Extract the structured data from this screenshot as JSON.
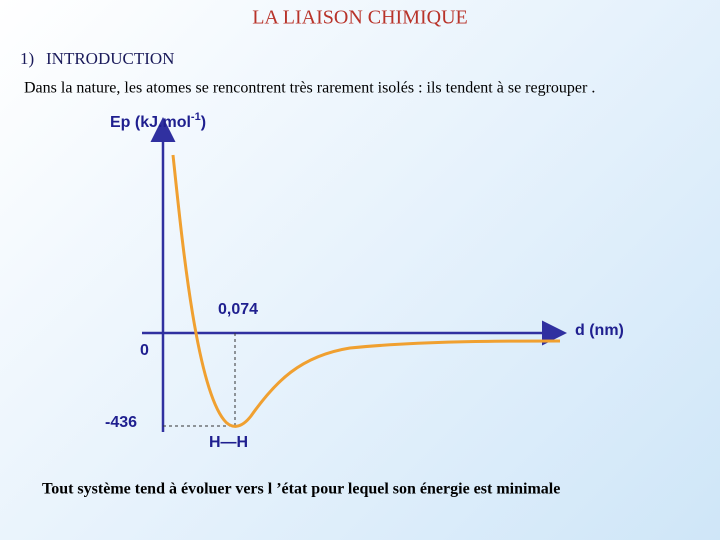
{
  "header": {
    "title": "LA LIAISON CHIMIQUE"
  },
  "section": {
    "number": "1)",
    "title": "INTRODUCTION"
  },
  "intro": "Dans la nature, les atomes se rencontrent très rarement isolés : ils tendent à se regrouper .",
  "figure": {
    "y_axis_label": {
      "text": "Ep (kJ.mol",
      "exponent": "-1",
      "suffix": ")"
    },
    "x_axis_label": "d (nm)",
    "zero_label": "0",
    "min_energy_label": "-436",
    "bond_length_label": "0,074",
    "molecule_label": "H—H"
  },
  "conclusion": "Tout système tend à évoluer vers l ’état pour lequel son énergie est minimale"
}
